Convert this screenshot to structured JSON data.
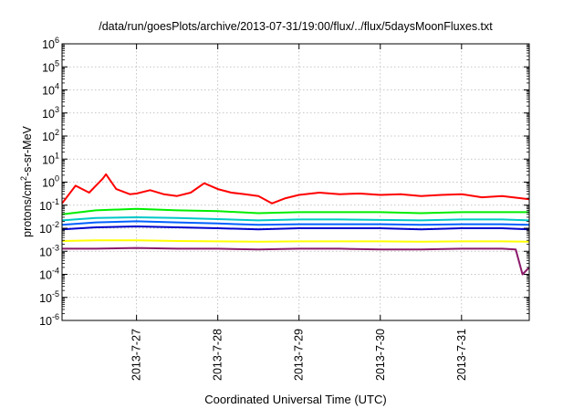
{
  "chart_data": {
    "type": "line",
    "title": "/data/run/goesPlots/archive/2013-07-31/19:00/flux/../flux/5daysMoonFluxes.txt",
    "xlabel": "Coordinated Universal Time (UTC)",
    "ylabel": {
      "pre": "protons/cm",
      "sup": "2",
      "post": "-s-sr-MeV"
    },
    "yscale": "log",
    "ylim": [
      1e-06,
      1000000.0
    ],
    "xlim": [
      "2013-07-26 02:00",
      "2013-07-31 20:00"
    ],
    "grid": true,
    "y_ticks": [
      {
        "value": 1e-06,
        "base": "10",
        "exp": "-6"
      },
      {
        "value": 1e-05,
        "base": "10",
        "exp": "-5"
      },
      {
        "value": 0.0001,
        "base": "10",
        "exp": "-4"
      },
      {
        "value": 0.001,
        "base": "10",
        "exp": "-3"
      },
      {
        "value": 0.01,
        "base": "10",
        "exp": "-2"
      },
      {
        "value": 0.1,
        "base": "10",
        "exp": "-1"
      },
      {
        "value": 1,
        "base": "10",
        "exp": "0"
      },
      {
        "value": 10.0,
        "base": "10",
        "exp": "1"
      },
      {
        "value": 100.0,
        "base": "10",
        "exp": "2"
      },
      {
        "value": 1000.0,
        "base": "10",
        "exp": "3"
      },
      {
        "value": 10000.0,
        "base": "10",
        "exp": "4"
      },
      {
        "value": 100000.0,
        "base": "10",
        "exp": "5"
      },
      {
        "value": 1000000.0,
        "base": "10",
        "exp": "6"
      }
    ],
    "x_ticks": [
      {
        "label": "2013-7-27",
        "value": "2013-07-27 00:00"
      },
      {
        "label": "2013-7-28",
        "value": "2013-07-28 00:00"
      },
      {
        "label": "2013-7-29",
        "value": "2013-07-29 00:00"
      },
      {
        "label": "2013-7-30",
        "value": "2013-07-30 00:00"
      },
      {
        "label": "2013-7-31",
        "value": "2013-07-31 00:00"
      }
    ],
    "series": [
      {
        "color": "#ff0000",
        "x": [
          "2013-07-26 02:00",
          "2013-07-26 06:00",
          "2013-07-26 10:00",
          "2013-07-26 14:00",
          "2013-07-26 15:00",
          "2013-07-26 18:00",
          "2013-07-26 22:00",
          "2013-07-27 00:00",
          "2013-07-27 04:00",
          "2013-07-27 08:00",
          "2013-07-27 12:00",
          "2013-07-27 16:00",
          "2013-07-27 20:00",
          "2013-07-28 00:00",
          "2013-07-28 04:00",
          "2013-07-28 08:00",
          "2013-07-28 12:00",
          "2013-07-28 16:00",
          "2013-07-28 20:00",
          "2013-07-29 00:00",
          "2013-07-29 06:00",
          "2013-07-29 12:00",
          "2013-07-29 18:00",
          "2013-07-30 00:00",
          "2013-07-30 06:00",
          "2013-07-30 12:00",
          "2013-07-30 18:00",
          "2013-07-31 00:00",
          "2013-07-31 06:00",
          "2013-07-31 12:00",
          "2013-07-31 20:00"
        ],
        "y": [
          0.12,
          0.7,
          0.35,
          1.4,
          2.2,
          0.5,
          0.3,
          0.32,
          0.45,
          0.3,
          0.25,
          0.35,
          0.9,
          0.5,
          0.35,
          0.3,
          0.25,
          0.12,
          0.2,
          0.28,
          0.35,
          0.3,
          0.32,
          0.28,
          0.3,
          0.25,
          0.28,
          0.3,
          0.22,
          0.25,
          0.18
        ]
      },
      {
        "color": "#00ee00",
        "x": [
          "2013-07-26 02:00",
          "2013-07-26 12:00",
          "2013-07-27 00:00",
          "2013-07-27 12:00",
          "2013-07-28 00:00",
          "2013-07-28 12:00",
          "2013-07-29 00:00",
          "2013-07-29 12:00",
          "2013-07-30 00:00",
          "2013-07-30 12:00",
          "2013-07-31 00:00",
          "2013-07-31 12:00",
          "2013-07-31 20:00"
        ],
        "y": [
          0.04,
          0.06,
          0.07,
          0.06,
          0.055,
          0.045,
          0.05,
          0.05,
          0.05,
          0.045,
          0.05,
          0.05,
          0.05
        ]
      },
      {
        "color": "#00c8c8",
        "x": [
          "2013-07-26 02:00",
          "2013-07-26 12:00",
          "2013-07-27 00:00",
          "2013-07-27 12:00",
          "2013-07-28 00:00",
          "2013-07-28 12:00",
          "2013-07-29 00:00",
          "2013-07-29 12:00",
          "2013-07-30 00:00",
          "2013-07-30 12:00",
          "2013-07-31 00:00",
          "2013-07-31 12:00",
          "2013-07-31 20:00"
        ],
        "y": [
          0.022,
          0.028,
          0.03,
          0.028,
          0.025,
          0.022,
          0.024,
          0.024,
          0.023,
          0.022,
          0.024,
          0.024,
          0.022
        ]
      },
      {
        "color": "#0060ff",
        "x": [
          "2013-07-26 02:00",
          "2013-07-26 12:00",
          "2013-07-27 00:00",
          "2013-07-27 12:00",
          "2013-07-28 00:00",
          "2013-07-28 12:00",
          "2013-07-29 00:00",
          "2013-07-29 12:00",
          "2013-07-30 00:00",
          "2013-07-30 12:00",
          "2013-07-31 00:00",
          "2013-07-31 12:00",
          "2013-07-31 20:00"
        ],
        "y": [
          0.014,
          0.018,
          0.02,
          0.018,
          0.016,
          0.014,
          0.015,
          0.015,
          0.015,
          0.014,
          0.015,
          0.015,
          0.014
        ]
      },
      {
        "color": "#0000cc",
        "x": [
          "2013-07-26 02:00",
          "2013-07-26 12:00",
          "2013-07-27 00:00",
          "2013-07-27 12:00",
          "2013-07-28 00:00",
          "2013-07-28 12:00",
          "2013-07-29 00:00",
          "2013-07-29 12:00",
          "2013-07-30 00:00",
          "2013-07-30 12:00",
          "2013-07-31 00:00",
          "2013-07-31 12:00",
          "2013-07-31 20:00"
        ],
        "y": [
          0.009,
          0.011,
          0.012,
          0.011,
          0.01,
          0.009,
          0.01,
          0.01,
          0.01,
          0.009,
          0.01,
          0.01,
          0.009
        ]
      },
      {
        "color": "#ffff00",
        "x": [
          "2013-07-26 02:00",
          "2013-07-26 12:00",
          "2013-07-27 00:00",
          "2013-07-27 12:00",
          "2013-07-28 00:00",
          "2013-07-28 12:00",
          "2013-07-29 00:00",
          "2013-07-29 12:00",
          "2013-07-30 00:00",
          "2013-07-30 12:00",
          "2013-07-31 00:00",
          "2013-07-31 12:00",
          "2013-07-31 20:00"
        ],
        "y": [
          0.0028,
          0.003,
          0.003,
          0.0028,
          0.0027,
          0.0026,
          0.0027,
          0.0027,
          0.0027,
          0.0026,
          0.0027,
          0.0027,
          0.0026
        ]
      },
      {
        "color": "#8b1a6b",
        "x": [
          "2013-07-26 02:00",
          "2013-07-26 12:00",
          "2013-07-27 00:00",
          "2013-07-27 12:00",
          "2013-07-28 00:00",
          "2013-07-28 12:00",
          "2013-07-29 00:00",
          "2013-07-29 12:00",
          "2013-07-30 00:00",
          "2013-07-30 12:00",
          "2013-07-31 00:00",
          "2013-07-31 12:00",
          "2013-07-31 16:00",
          "2013-07-31 18:00",
          "2013-07-31 20:00"
        ],
        "y": [
          0.0013,
          0.0013,
          0.0014,
          0.0013,
          0.0013,
          0.0012,
          0.0013,
          0.0013,
          0.0012,
          0.0012,
          0.0013,
          0.0013,
          0.0012,
          0.0001,
          0.0002
        ]
      }
    ]
  }
}
